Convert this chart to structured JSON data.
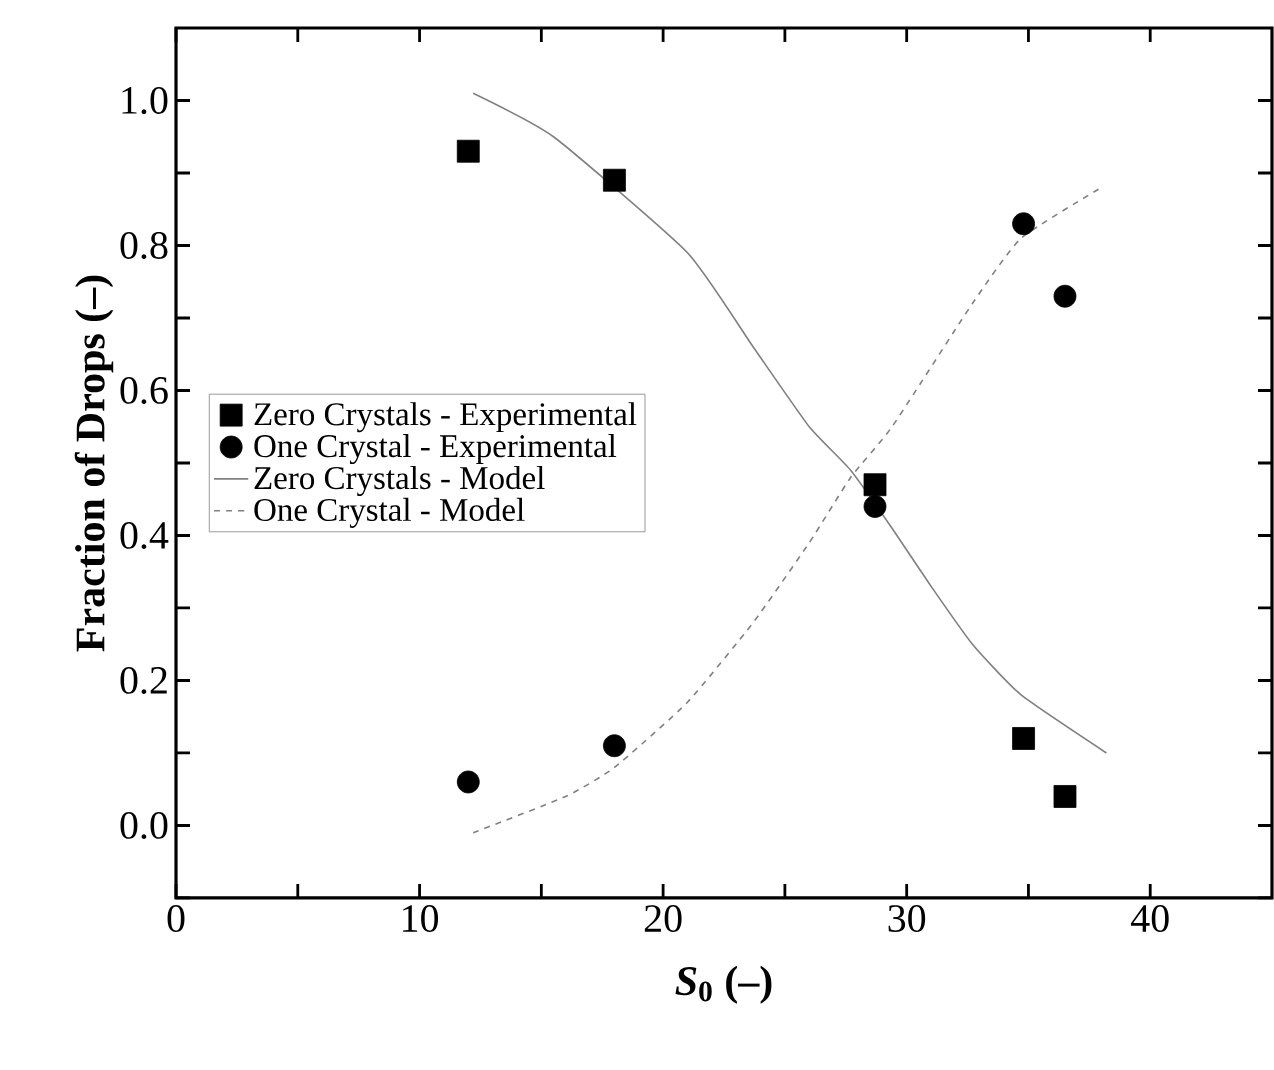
{
  "chart_data": {
    "type": "scatter",
    "xlabel": "*S*$_{0}$ (–)",
    "ylabel": "Fraction of Drops (–)",
    "xlim": [
      0,
      45
    ],
    "ylim": [
      -0.1,
      1.1
    ],
    "xticks": [
      0,
      {
        "value": 5,
        "label": null
      },
      10,
      {
        "value": 15,
        "label": null
      },
      20,
      {
        "value": 25,
        "label": null
      },
      30,
      {
        "value": 35,
        "label": null
      },
      40
    ],
    "yticks": [
      {
        "value": -0.1,
        "label": null
      },
      {
        "value": 0,
        "label": "0.0"
      },
      {
        "value": 0.1,
        "label": null
      },
      {
        "value": 0.2,
        "label": "0.2"
      },
      {
        "value": 0.3,
        "label": null
      },
      {
        "value": 0.4,
        "label": "0.4"
      },
      {
        "value": 0.5,
        "label": null
      },
      {
        "value": 0.6,
        "label": "0.6"
      },
      {
        "value": 0.7,
        "label": null
      },
      {
        "value": 0.8,
        "label": "0.8"
      },
      {
        "value": 0.9,
        "label": null
      },
      {
        "value": 1.0,
        "label": "1.0"
      }
    ],
    "legend": "left",
    "grid": false,
    "series": [
      {
        "name": "Zero Crystals - Experimental",
        "marker": "square",
        "color": "#000000",
        "x": [
          12,
          18,
          28.7,
          34.8,
          36.5
        ],
        "values": [
          0.93,
          0.89,
          0.47,
          0.12,
          0.04
        ]
      },
      {
        "name": "One Crystal - Experimental",
        "marker": "circle",
        "color": "#000000",
        "x": [
          12,
          18,
          28.7,
          34.8,
          36.5
        ],
        "values": [
          0.06,
          0.11,
          0.44,
          0.83,
          0.73
        ]
      },
      {
        "name": "Zero Crystals - Model",
        "type": "line",
        "line_style": "solid",
        "color": "#808080",
        "x": [
          12.2,
          15.5,
          21.0,
          23.7,
          26.0,
          27.7,
          29.4,
          31.0,
          32.7,
          34.7,
          38.2
        ],
        "values": [
          1.01,
          0.95,
          0.79,
          0.66,
          0.55,
          0.49,
          0.41,
          0.33,
          0.25,
          0.18,
          0.1
        ]
      },
      {
        "name": "One Crystal - Model",
        "type": "line",
        "line_style": "dashed",
        "color": "#808080",
        "x": [
          12.2,
          16.0,
          18.0,
          21.0,
          23.7,
          26.0,
          27.7,
          29.4,
          32.7,
          34.7,
          38.0
        ],
        "values": [
          -0.01,
          0.04,
          0.08,
          0.17,
          0.28,
          0.39,
          0.48,
          0.55,
          0.72,
          0.81,
          0.88
        ]
      }
    ]
  }
}
